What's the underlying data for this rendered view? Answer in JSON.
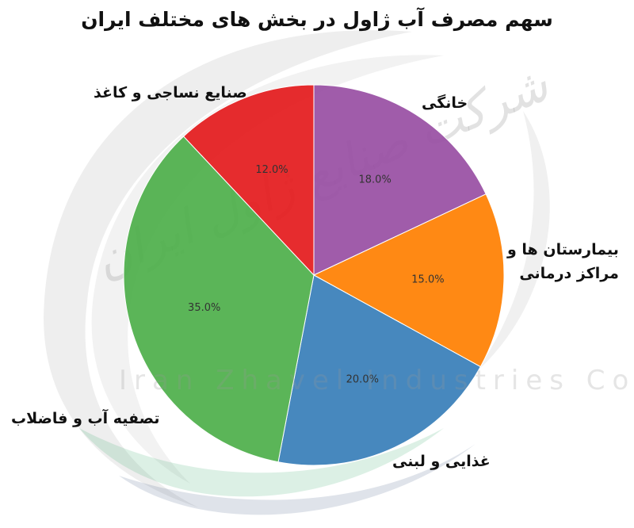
{
  "chart_data": {
    "type": "pie",
    "title": "سهم مصرف آب ژاول در بخش های مختلف ایران",
    "categories": [
      "خانگی",
      "بیمارستان ها و مراکز درمانی",
      "غذایی و لبنی",
      "تصفیه آب و فاضلاب",
      "صنایع نساجی و کاغذ"
    ],
    "values": [
      18.0,
      15.0,
      20.0,
      35.0,
      12.0
    ],
    "value_labels": [
      "18.0%",
      "15.0%",
      "20.0%",
      "35.0%",
      "12.0%"
    ],
    "colors": [
      "#984ea3",
      "#ff7f00",
      "#377eb8",
      "#4daf4a",
      "#e41a1c"
    ]
  },
  "labels": {
    "household": "خانگی",
    "hospital_line1": "بیمارستان ها و",
    "hospital_line2": "مراکز درمانی",
    "food": "غذایی و لبنی",
    "water": "تصفیه آب و فاضلاب",
    "textile": "صنایع نساجی و کاغذ"
  },
  "watermark": {
    "latin": "Iran Zhavel Industries Co",
    "persian": "شرکت صنایع ژاول ایران"
  }
}
